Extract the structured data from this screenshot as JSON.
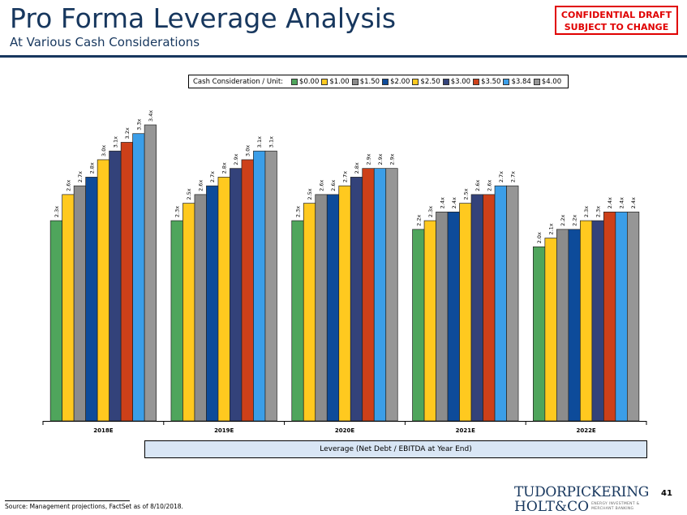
{
  "header": {
    "title": "Pro Forma Leverage Analysis",
    "subtitle": "At Various Cash Considerations",
    "confidential_line1": "CONFIDENTIAL DRAFT",
    "confidential_line2": "SUBJECT TO CHANGE"
  },
  "colors": {
    "brand_navy": "#17375e",
    "confidential_red": "#e00000",
    "leverage_box_bg": "#d9e6f5"
  },
  "chart_data": {
    "type": "bar",
    "title": "Pro Forma Leverage Analysis",
    "legend_title": "Cash Consideration / Unit:",
    "legend_position": "top-center",
    "xlabel": "Leverage (Net Debt / EBITDA at Year End)",
    "ylabel": "",
    "ylim": [
      0,
      3.4
    ],
    "grid": false,
    "categories": [
      "2018E",
      "2019E",
      "2020E",
      "2021E",
      "2022E"
    ],
    "series": [
      {
        "name": "$0.00",
        "color": "#4fa55c",
        "values": [
          2.3,
          2.3,
          2.3,
          2.2,
          2.0
        ]
      },
      {
        "name": "$1.00",
        "color": "#ffc91f",
        "values": [
          2.6,
          2.5,
          2.5,
          2.3,
          2.1
        ]
      },
      {
        "name": "$1.50",
        "color": "#8c8c8c",
        "values": [
          2.7,
          2.6,
          2.6,
          2.4,
          2.2
        ]
      },
      {
        "name": "$2.00",
        "color": "#0d4b9a",
        "values": [
          2.8,
          2.7,
          2.6,
          2.4,
          2.2
        ]
      },
      {
        "name": "$2.50",
        "color": "#ffc91f",
        "values": [
          3.0,
          2.8,
          2.7,
          2.5,
          2.3
        ]
      },
      {
        "name": "$3.00",
        "color": "#33427a",
        "values": [
          3.1,
          2.9,
          2.8,
          2.6,
          2.3
        ]
      },
      {
        "name": "$3.50",
        "color": "#cd4019",
        "values": [
          3.2,
          3.0,
          2.9,
          2.6,
          2.4
        ]
      },
      {
        "name": "$3.84",
        "color": "#3b9ee8",
        "values": [
          3.3,
          3.1,
          2.9,
          2.7,
          2.4
        ]
      },
      {
        "name": "$4.00",
        "color": "#969696",
        "values": [
          3.4,
          3.1,
          2.9,
          2.7,
          2.4
        ]
      }
    ],
    "data_label_suffix": "x"
  },
  "footer": {
    "source": "Source: Management projections, FactSet as of 8/10/2018.",
    "page_number": "41",
    "logo_line1": "TUDORPICKERING",
    "logo_line2": "HOLT&CO",
    "logo_tagline_1": "ENERGY INVESTMENT &",
    "logo_tagline_2": "MERCHANT BANKING"
  }
}
